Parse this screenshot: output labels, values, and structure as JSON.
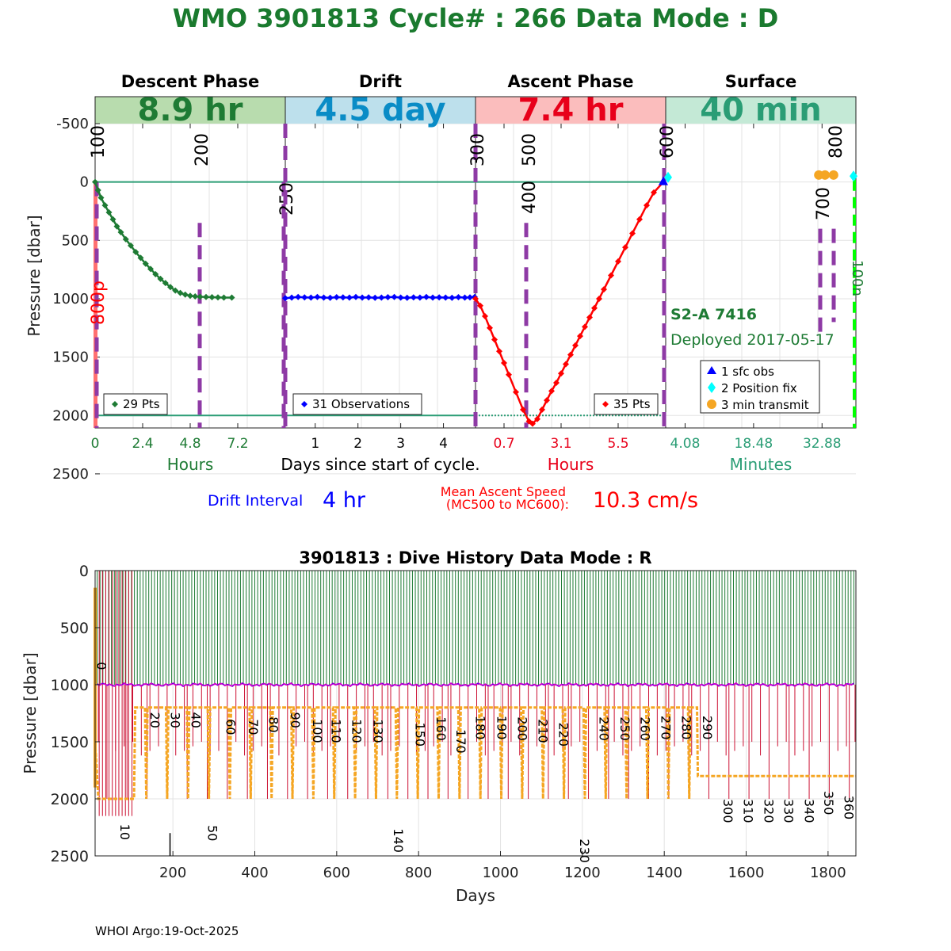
{
  "header": {
    "title": "WMO 3901813   Cycle# : 266   Data Mode : D"
  },
  "colors": {
    "descent": "#1e7b34",
    "drift": "#0000ff",
    "ascent": "#ff0000",
    "surface": "#2a9d75",
    "marker": "#8e3aa5",
    "orange": "#f5a623",
    "cyan": "#00ffff",
    "green_dash": "#00ff00",
    "history_green": "#1e7b34",
    "history_red": "#cc1133",
    "history_magenta": "#cc00cc"
  },
  "chart_data": [
    {
      "type": "line",
      "ylabel": "Pressure [dbar]",
      "ylim": [
        2600,
        -500
      ],
      "yticks": [
        "-500",
        "0",
        "500",
        "1000",
        "1500",
        "2000",
        "2500"
      ],
      "grid": true,
      "panels": [
        {
          "name": "descent",
          "header": "Descent Phase",
          "duration": "8.9 hr",
          "duration_color": "#1e7b34",
          "band_color": "#b8dcae",
          "xticks": [
            "0",
            "2.4",
            "4.8",
            "7.2"
          ],
          "xlabel": "Hours",
          "legend": "29 Pts",
          "xlim": [
            0,
            9.6
          ],
          "x": [
            0,
            0.15,
            0.3,
            0.5,
            0.7,
            0.9,
            1.1,
            1.3,
            1.55,
            1.8,
            2.05,
            2.3,
            2.55,
            2.8,
            3.05,
            3.3,
            3.55,
            3.8,
            4.05,
            4.3,
            4.55,
            4.8,
            5.05,
            5.3,
            5.6,
            5.9,
            6.2,
            6.5,
            6.9
          ],
          "y": [
            0,
            70,
            135,
            200,
            260,
            320,
            380,
            430,
            490,
            545,
            600,
            650,
            700,
            745,
            790,
            830,
            865,
            900,
            930,
            950,
            965,
            975,
            980,
            983,
            985,
            987,
            988,
            990,
            990
          ]
        },
        {
          "name": "drift",
          "header": "Drift",
          "duration": "4.5 day",
          "duration_color": "#0a8cc6",
          "band_color": "#bde0ec",
          "xticks": [
            "1",
            "2",
            "3",
            "4"
          ],
          "xlabel": "Days since start of cycle.",
          "legend": "31 Observations",
          "xlim": [
            0.3,
            4.75
          ],
          "x": [
            0.3,
            0.45,
            0.6,
            0.75,
            0.9,
            1.05,
            1.2,
            1.35,
            1.5,
            1.65,
            1.8,
            1.95,
            2.1,
            2.25,
            2.4,
            2.55,
            2.7,
            2.85,
            3.0,
            3.15,
            3.3,
            3.45,
            3.6,
            3.75,
            3.9,
            4.05,
            4.2,
            4.35,
            4.5,
            4.62,
            4.73
          ],
          "y": [
            995,
            990,
            985,
            988,
            990,
            985,
            990,
            992,
            987,
            988,
            990,
            985,
            990,
            988,
            992,
            990,
            987,
            985,
            990,
            992,
            988,
            990,
            985,
            990,
            988,
            990,
            992,
            987,
            990,
            988,
            985
          ]
        },
        {
          "name": "ascent",
          "header": "Ascent Phase",
          "duration": "7.4 hr",
          "duration_color": "#e8001a",
          "band_color": "#fbbdbd",
          "xticks": [
            "0.7",
            "3.1",
            "5.5"
          ],
          "xlabel": "Hours",
          "legend": "35 Pts",
          "xlim": [
            -0.5,
            7.5
          ],
          "x": [
            -0.5,
            -0.3,
            -0.1,
            0.1,
            0.3,
            0.5,
            0.7,
            0.9,
            1.2,
            1.5,
            1.75,
            1.9,
            2.1,
            2.3,
            2.5,
            2.7,
            2.9,
            3.1,
            3.3,
            3.5,
            3.7,
            3.9,
            4.1,
            4.3,
            4.5,
            4.7,
            4.9,
            5.2,
            5.5,
            5.8,
            6.1,
            6.4,
            6.7,
            7.0,
            7.4
          ],
          "y": [
            1000,
            1060,
            1150,
            1250,
            1350,
            1450,
            1550,
            1650,
            1800,
            1950,
            2050,
            2070,
            2030,
            1950,
            1870,
            1790,
            1720,
            1640,
            1560,
            1480,
            1400,
            1320,
            1240,
            1160,
            1080,
            1000,
            920,
            800,
            680,
            560,
            440,
            320,
            200,
            90,
            0
          ]
        },
        {
          "name": "surface",
          "header": "Surface",
          "duration": "40 min",
          "duration_color": "#2a9d75",
          "band_color": "#c4e9d6",
          "xticks": [
            "4.08",
            "18.48",
            "32.88"
          ],
          "xlabel": "Minutes",
          "xlim": [
            0,
            40
          ],
          "sfc_obs": {
            "x": 0,
            "y": 0
          },
          "position_fix": [
            {
              "x": 0.5,
              "y": -40
            },
            {
              "x": 39.5,
              "y": -50
            }
          ],
          "transmit": [
            {
              "x": 32.2,
              "y": -60
            },
            {
              "x": 33.5,
              "y": -60
            },
            {
              "x": 35.3,
              "y": -60
            }
          ],
          "legend": [
            "1 sfc obs",
            "2 Position fix",
            "3 min transmit"
          ],
          "float_type": "S2-A 7416",
          "deployed": "Deployed 2017-05-17"
        }
      ],
      "reference_lines": [
        0,
        2000
      ],
      "vertical_markers": [
        "100",
        "200",
        "250",
        "300",
        "400",
        "500",
        "600",
        "700",
        "800"
      ],
      "left_label": "800p",
      "right_label": "100n",
      "drift_interval_label": "Drift Interval",
      "drift_interval_value": "4 hr",
      "mean_ascent_label_1": "Mean Ascent Speed",
      "mean_ascent_label_2": "(MC500 to MC600):",
      "mean_ascent_value": "10.3 cm/s"
    },
    {
      "type": "line",
      "title": "3901813 : Dive History      Data Mode : R",
      "xlabel": "Days",
      "ylabel": "Pressure [dbar]",
      "xlim": [
        10,
        1868
      ],
      "ylim": [
        2500,
        0
      ],
      "xticks": [
        "200",
        "400",
        "600",
        "800",
        "1000",
        "1200",
        "1400",
        "1600",
        "1800"
      ],
      "yticks": [
        "0",
        "500",
        "1000",
        "1500",
        "2000",
        "2500"
      ],
      "grid": true,
      "cycles": 266,
      "cycle_days": 7,
      "drift_pressure": 1000,
      "park_profile_pressure_1": 2000,
      "park_profile_pressure_2": 1200,
      "park_profile_pressure_3": 1800,
      "cycle_labels_top": [
        {
          "label": "0",
          "day": 15,
          "p": 800
        },
        {
          "label": "20",
          "day": 145,
          "p": 1240
        },
        {
          "label": "30",
          "day": 195,
          "p": 1240
        },
        {
          "label": "40",
          "day": 245,
          "p": 1240
        },
        {
          "label": "60",
          "day": 330,
          "p": 1300
        },
        {
          "label": "70",
          "day": 385,
          "p": 1300
        },
        {
          "label": "80",
          "day": 435,
          "p": 1280
        },
        {
          "label": "90",
          "day": 488,
          "p": 1240
        },
        {
          "label": "100",
          "day": 542,
          "p": 1300
        },
        {
          "label": "110",
          "day": 588,
          "p": 1300
        },
        {
          "label": "120",
          "day": 638,
          "p": 1300
        },
        {
          "label": "130",
          "day": 690,
          "p": 1300
        },
        {
          "label": "150",
          "day": 793,
          "p": 1330
        },
        {
          "label": "160",
          "day": 844,
          "p": 1280
        },
        {
          "label": "170",
          "day": 893,
          "p": 1390
        },
        {
          "label": "180",
          "day": 940,
          "p": 1270
        },
        {
          "label": "190",
          "day": 992,
          "p": 1270
        },
        {
          "label": "200",
          "day": 1043,
          "p": 1280
        },
        {
          "label": "210",
          "day": 1093,
          "p": 1300
        },
        {
          "label": "220",
          "day": 1143,
          "p": 1330
        },
        {
          "label": "240",
          "day": 1242,
          "p": 1280
        },
        {
          "label": "250",
          "day": 1293,
          "p": 1280
        },
        {
          "label": "260",
          "day": 1343,
          "p": 1280
        },
        {
          "label": "270",
          "day": 1393,
          "p": 1270
        },
        {
          "label": "280",
          "day": 1443,
          "p": 1270
        },
        {
          "label": "290",
          "day": 1494,
          "p": 1270
        }
      ],
      "cycle_labels_bottom": [
        {
          "label": "10",
          "day": 72,
          "p": 2220
        },
        {
          "label": "50",
          "day": 286,
          "p": 2230
        },
        {
          "label": "140",
          "day": 740,
          "p": 2260
        },
        {
          "label": "230",
          "day": 1194,
          "p": 2350
        },
        {
          "label": "300",
          "day": 1545,
          "p": 2000
        },
        {
          "label": "310",
          "day": 1594,
          "p": 2000
        },
        {
          "label": "320",
          "day": 1644,
          "p": 2000
        },
        {
          "label": "330",
          "day": 1693,
          "p": 2000
        },
        {
          "label": "340",
          "day": 1743,
          "p": 2000
        },
        {
          "label": "350",
          "day": 1791,
          "p": 1930
        },
        {
          "label": "360",
          "day": 1840,
          "p": 1970
        }
      ]
    }
  ],
  "footer": {
    "text": "WHOI Argo:19-Oct-2025"
  }
}
